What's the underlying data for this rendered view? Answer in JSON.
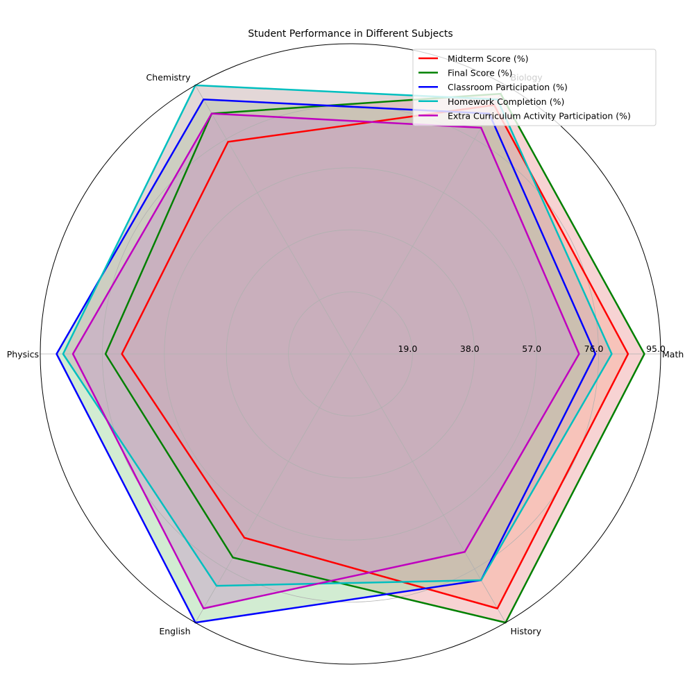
{
  "chart_data": {
    "type": "radar",
    "title": "Student Performance in Different Subjects",
    "categories": [
      "Math",
      "Biology",
      "Chemistry",
      "Physics",
      "English",
      "History"
    ],
    "rmax": 95,
    "rticks": [
      19,
      38,
      57,
      76,
      95
    ],
    "rtick_labels": [
      "19.0",
      "38.0",
      "57.0",
      "76.0",
      "95.0"
    ],
    "grid": true,
    "legend_position": "top-right",
    "series": [
      {
        "name": "Midterm Score (%)",
        "color": "#ff0000",
        "values": [
          85,
          88,
          75,
          70,
          65,
          90
        ]
      },
      {
        "name": "Final Score (%)",
        "color": "#008000",
        "values": [
          90,
          92,
          85,
          75,
          72,
          95
        ]
      },
      {
        "name": "Classroom Participation (%)",
        "color": "#0000ff",
        "values": [
          75,
          85,
          90,
          90,
          95,
          80
        ]
      },
      {
        "name": "Homework Completion (%)",
        "color": "#00bfbf",
        "values": [
          80,
          90,
          95,
          88,
          82,
          80
        ]
      },
      {
        "name": "Extra Curriculum Activity Participation (%)",
        "color": "#bf00bf",
        "values": [
          70,
          80,
          85,
          85,
          90,
          70
        ]
      }
    ],
    "fill_colors": [
      "#ffbf99",
      "#f0a8a8",
      "#a6d9a6",
      "#c8b0b0",
      "#c8a0c8"
    ]
  }
}
